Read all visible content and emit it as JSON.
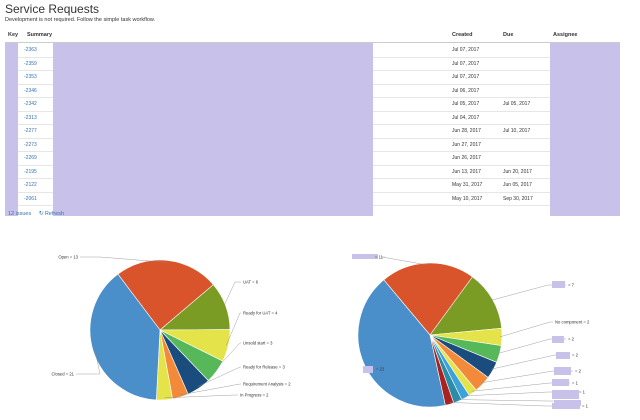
{
  "page": {
    "title": "Service Requests",
    "subtitle": "Development is not required. Follow the simple task workflow."
  },
  "table": {
    "headers": {
      "key": "Key",
      "summary": "Summary",
      "created": "Created",
      "due": "Due",
      "assignee": "Assignee"
    },
    "rows": [
      {
        "key": "-2363",
        "created": "Jul 07, 2017",
        "due": ""
      },
      {
        "key": "-2359",
        "created": "Jul 07, 2017",
        "due": ""
      },
      {
        "key": "-2353",
        "created": "Jul 07, 2017",
        "due": ""
      },
      {
        "key": "-2346",
        "created": "Jul 06, 2017",
        "due": ""
      },
      {
        "key": "-2342",
        "created": "Jul 05, 2017",
        "due": "Jul 05, 2017"
      },
      {
        "key": "-2313",
        "created": "Jul 04, 2017",
        "due": ""
      },
      {
        "key": "-2277",
        "created": "Jun 28, 2017",
        "due": "Jul 10, 2017"
      },
      {
        "key": "-2273",
        "created": "Jun 27, 2017",
        "due": ""
      },
      {
        "key": "-2269",
        "created": "Jun 26, 2017",
        "due": ""
      },
      {
        "key": "-2195",
        "created": "Jun 13, 2017",
        "due": "Jun 20, 2017"
      },
      {
        "key": "-2122",
        "created": "May 31, 2017",
        "due": "Jun 05, 2017"
      },
      {
        "key": "-2061",
        "created": "May 10, 2017",
        "due": "Sep 30, 2017"
      }
    ]
  },
  "footer": {
    "issues": "12 issues",
    "refresh": "Refresh"
  },
  "colors": {
    "blue": "#4a8fc9",
    "orange": "#d9542b",
    "green": "#7a9b24",
    "yellow": "#e4e44a",
    "lightgreen": "#57b85a",
    "navy": "#1a4d7e",
    "lightorange": "#f28a3a",
    "lightblue": "#3ea2d9",
    "darkred": "#a8231f",
    "teal": "#2a8ca8",
    "redact": "#c8c2ea"
  },
  "chart_data": [
    {
      "type": "pie",
      "title": "",
      "slices": [
        {
          "label": "Open = 13",
          "value": 13,
          "color": "#d9542b"
        },
        {
          "label": "UAT = 6",
          "value": 6,
          "color": "#7a9b24"
        },
        {
          "label": "Ready for UAT = 4",
          "value": 4,
          "color": "#e4e44a"
        },
        {
          "label": "Unsold start = 3",
          "value": 3,
          "color": "#57b85a"
        },
        {
          "label": "Ready for Release = 3",
          "value": 3,
          "color": "#1a4d7e"
        },
        {
          "label": "Requirement Analysis = 2",
          "value": 2,
          "color": "#f28a3a"
        },
        {
          "label": "In Progress = 2",
          "value": 2,
          "color": "#e4e44a"
        },
        {
          "label": "Closed = 21",
          "value": 21,
          "color": "#4a8fc9"
        }
      ]
    },
    {
      "type": "pie",
      "title": "",
      "slices": [
        {
          "label": "= 11",
          "value": 11,
          "color": "#d9542b"
        },
        {
          "label": "= 7",
          "value": 7,
          "color": "#7a9b24"
        },
        {
          "label": "No component = 2",
          "value": 2,
          "color": "#e4e44a"
        },
        {
          "label": "= 2",
          "value": 2,
          "color": "#57b85a"
        },
        {
          "label": "= 2",
          "value": 2,
          "color": "#1a4d7e"
        },
        {
          "label": "= 2",
          "value": 2,
          "color": "#f28a3a"
        },
        {
          "label": "= 1",
          "value": 1,
          "color": "#e4e44a"
        },
        {
          "label": "= 1",
          "value": 1,
          "color": "#3ea2d9"
        },
        {
          "label": "",
          "value": 1,
          "color": "#2a8ca8"
        },
        {
          "label": "= 1",
          "value": 1,
          "color": "#a8231f"
        },
        {
          "label": "= 22",
          "value": 22,
          "color": "#4a8fc9"
        }
      ]
    }
  ]
}
